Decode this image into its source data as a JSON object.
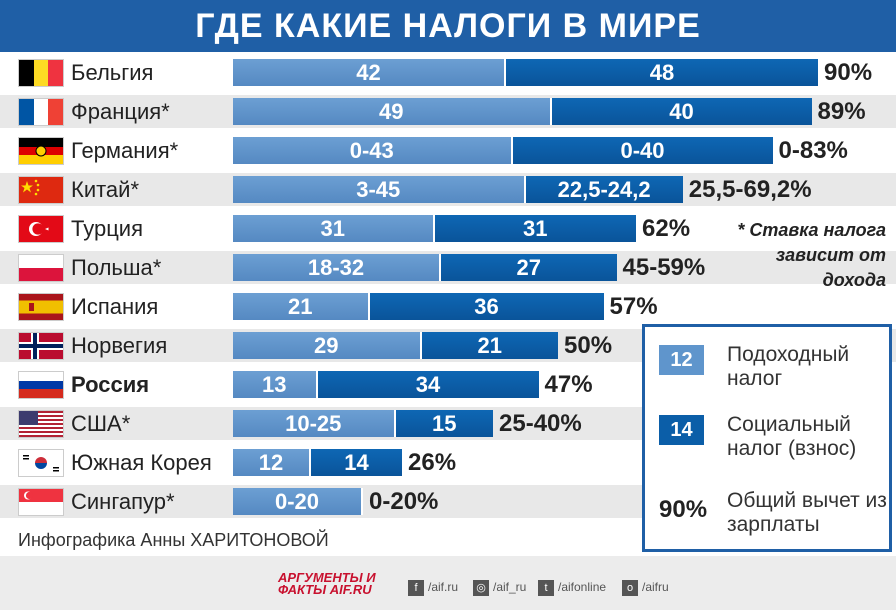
{
  "title": "ГДЕ КАКИЕ НАЛОГИ В МИРЕ",
  "chart_data": {
    "type": "bar",
    "stacked": true,
    "orientation": "horizontal",
    "series": [
      {
        "name": "Подоходный налог",
        "color": "#5f95cc"
      },
      {
        "name": "Социальный налог (взнос)",
        "color": "#0b5ea8"
      }
    ],
    "rows": [
      {
        "country": "Бельгия",
        "income": 42,
        "social": 48,
        "income_label": "42",
        "social_label": "48",
        "total": "90%",
        "bold": false,
        "flag": "belgium"
      },
      {
        "country": "Франция*",
        "income": 49,
        "social": 40,
        "income_label": "49",
        "social_label": "40",
        "total": "89%",
        "bold": false,
        "flag": "france"
      },
      {
        "country": "Германия*",
        "income": 43,
        "social": 40,
        "income_label": "0-43",
        "social_label": "0-40",
        "total": "0-83%",
        "bold": false,
        "flag": "germany"
      },
      {
        "country": "Китай*",
        "income": 45,
        "social": 24.2,
        "income_label": "3-45",
        "social_label": "22,5-24,2",
        "total": "25,5-69,2%",
        "bold": false,
        "flag": "china"
      },
      {
        "country": "Турция",
        "income": 31,
        "social": 31,
        "income_label": "31",
        "social_label": "31",
        "total": "62%",
        "bold": false,
        "flag": "turkey"
      },
      {
        "country": "Польша*",
        "income": 32,
        "social": 27,
        "income_label": "18-32",
        "social_label": "27",
        "total": "45-59%",
        "bold": false,
        "flag": "poland"
      },
      {
        "country": "Испания",
        "income": 21,
        "social": 36,
        "income_label": "21",
        "social_label": "36",
        "total": "57%",
        "bold": false,
        "flag": "spain"
      },
      {
        "country": "Норвегия",
        "income": 29,
        "social": 21,
        "income_label": "29",
        "social_label": "21",
        "total": "50%",
        "bold": false,
        "flag": "norway"
      },
      {
        "country": "Россия",
        "income": 13,
        "social": 34,
        "income_label": "13",
        "social_label": "34",
        "total": "47%",
        "bold": true,
        "flag": "russia"
      },
      {
        "country": "США*",
        "income": 25,
        "social": 15,
        "income_label": "10-25",
        "social_label": "15",
        "total": "25-40%",
        "bold": false,
        "flag": "usa"
      },
      {
        "country": "Южная Корея",
        "income": 12,
        "social": 14,
        "income_label": "12",
        "social_label": "14",
        "total": "26%",
        "bold": false,
        "flag": "south-korea"
      },
      {
        "country": "Сингапур*",
        "income": 20,
        "social": 0,
        "income_label": "0-20",
        "social_label": "",
        "total": "0-20%",
        "bold": false,
        "flag": "singapore"
      }
    ]
  },
  "note": "* Ставка налога зависит от дохода",
  "legend": {
    "items": [
      {
        "swatch": "12",
        "label": "Подоходный налог"
      },
      {
        "swatch": "14",
        "label": "Социальный налог (взнос)"
      },
      {
        "swatch": "90%",
        "label": "Общий вычет из зарплаты"
      }
    ]
  },
  "credit": "Инфографика Анны ХАРИТОНОВОЙ",
  "footer": {
    "logo": "АРГУМЕНТЫ И ФАКТЫ AIF.RU",
    "social": [
      {
        "icon": "facebook-icon",
        "glyph": "f",
        "text": "/aif.ru"
      },
      {
        "icon": "instagram-icon",
        "glyph": "◎",
        "text": "/aif_ru"
      },
      {
        "icon": "twitter-icon",
        "glyph": "t",
        "text": "/aifonline"
      },
      {
        "icon": "odnoklassniki-icon",
        "glyph": "o",
        "text": "/aifru"
      }
    ]
  }
}
